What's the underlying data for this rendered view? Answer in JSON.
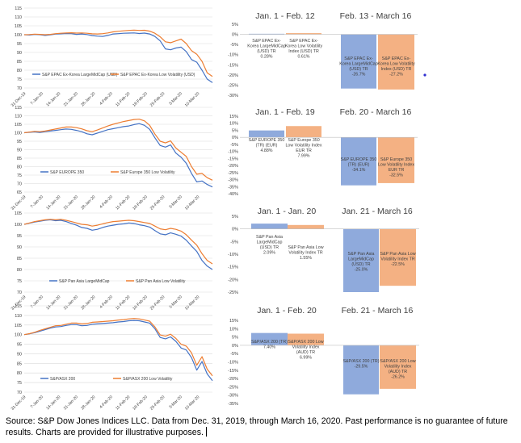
{
  "colors": {
    "msci": "#4472C4",
    "lowvol": "#ED7D31",
    "bar_blue": "#8FAADC",
    "bar_orange": "#F4B183",
    "grid": "#D9D9D9",
    "dot": "#2F2FD0"
  },
  "chart_data": [
    {
      "id": "line-epac",
      "type": "line",
      "ylim": [
        70,
        115
      ],
      "ytick_labels": [
        "115",
        "110",
        "105",
        "100",
        "95",
        "90",
        "85",
        "80",
        "75",
        "70"
      ],
      "x_tick_labels": [
        "31-Dec-19",
        "7-Jan-20",
        "14-Jan-20",
        "21-Jan-20",
        "28-Jan-20",
        "4-Feb-20",
        "11-Feb-20",
        "18-Feb-20",
        "25-Feb-20",
        "3-Mar-20",
        "10-Mar-20"
      ],
      "series": [
        {
          "name": "S&P EPAC Ex-Korea LargeMidCap (USD)",
          "color": "#4472C4",
          "values": [
            100,
            99.8,
            100.2,
            100,
            99.6,
            99.9,
            100.4,
            100.5,
            100.7,
            100.6,
            100.2,
            100.4,
            100.1,
            99.5,
            99.2,
            99,
            99.6,
            100.4,
            100.6,
            100.8,
            100.9,
            101,
            100.7,
            100.9,
            100.4,
            99,
            96.5,
            92,
            91.5,
            92.5,
            93,
            90.5,
            86,
            84.5,
            80,
            75,
            73
          ]
        },
        {
          "name": "S&P EPAC Ex-Korea Low Volatility (USD)",
          "color": "#ED7D31",
          "values": [
            100,
            100.1,
            100.3,
            100.2,
            100,
            100.2,
            100.6,
            100.8,
            101,
            101.1,
            100.9,
            101,
            100.8,
            100.5,
            100.4,
            100.6,
            101,
            101.6,
            101.9,
            102.2,
            102.4,
            102.6,
            102.4,
            102.5,
            102,
            100.8,
            98.8,
            96,
            95.5,
            96.5,
            97.5,
            95,
            91,
            89,
            85,
            78.5,
            76.5
          ]
        }
      ]
    },
    {
      "id": "line-europe",
      "type": "line",
      "ylim": [
        65,
        115
      ],
      "ytick_labels": [
        "115",
        "110",
        "105",
        "100",
        "95",
        "90",
        "85",
        "80",
        "75",
        "70",
        "65"
      ],
      "x_tick_labels": [
        "31-Dec-19",
        "7-Jan-20",
        "14-Jan-20",
        "21-Jan-20",
        "28-Jan-20",
        "4-Feb-20",
        "11-Feb-20",
        "18-Feb-20",
        "25-Feb-20",
        "3-Mar-20",
        "10-Mar-20"
      ],
      "series": [
        {
          "name": "S&P EUROPE 350",
          "color": "#4472C4",
          "values": [
            100,
            100.3,
            100.5,
            100.2,
            100.6,
            101,
            101.4,
            101.8,
            102.2,
            102,
            101.4,
            100.6,
            99.4,
            98.8,
            99.8,
            100.8,
            101.8,
            102.4,
            103,
            103.6,
            104,
            104.8,
            105.4,
            104.4,
            102,
            97,
            92.5,
            91.5,
            92.8,
            88,
            85.5,
            82,
            76,
            71,
            71.5,
            69.5,
            68
          ]
        },
        {
          "name": "S&P Europe 350 Low Volatility",
          "color": "#ED7D31",
          "values": [
            100,
            100.4,
            100.8,
            100.6,
            101,
            101.6,
            102.2,
            102.8,
            103.4,
            103.4,
            103,
            102.3,
            101.2,
            100.6,
            101.6,
            102.8,
            104,
            105,
            105.8,
            106.6,
            107.2,
            107.8,
            108,
            107,
            104.4,
            99.2,
            95,
            94,
            95.2,
            91,
            88.5,
            86,
            80,
            75.5,
            76,
            73.5,
            72
          ]
        }
      ]
    },
    {
      "id": "line-panasia",
      "type": "line",
      "ylim": [
        70,
        105
      ],
      "ytick_labels": [
        "105",
        "100",
        "95",
        "90",
        "85",
        "80",
        "75",
        "70"
      ],
      "x_tick_labels": [
        "31-Dec-19",
        "7-Jan-20",
        "14-Jan-20",
        "21-Jan-20",
        "28-Jan-20",
        "4-Feb-20",
        "11-Feb-20",
        "18-Feb-20",
        "25-Feb-20",
        "3-Mar-20",
        "10-Mar-20"
      ],
      "series": [
        {
          "name": "S&P Pan Asia LargeMidCap",
          "color": "#4472C4",
          "values": [
            100,
            100.5,
            101,
            101.4,
            101.8,
            102,
            101.6,
            101.8,
            101.2,
            100.4,
            99.6,
            98.6,
            98.2,
            97.4,
            97.8,
            98.6,
            99.2,
            99.6,
            100,
            100.2,
            100.6,
            100.4,
            99.8,
            99.4,
            98.8,
            97.2,
            95.8,
            95.4,
            96.2,
            95.6,
            94.8,
            93,
            90.4,
            88,
            84,
            81.5,
            80
          ]
        },
        {
          "name": "S&P Pan Asia Low Volatility",
          "color": "#ED7D31",
          "values": [
            100,
            100.6,
            101.2,
            101.6,
            102,
            102.2,
            102,
            102.2,
            101.8,
            101.2,
            100.6,
            100,
            99.8,
            99.2,
            99.6,
            100.2,
            100.8,
            101.2,
            101.4,
            101.6,
            101.8,
            101.6,
            101.2,
            100.8,
            100.4,
            99.2,
            98,
            97.6,
            98.2,
            97.8,
            97,
            95.4,
            93,
            90.8,
            87,
            84,
            82.5
          ]
        }
      ]
    },
    {
      "id": "line-asx",
      "type": "line",
      "ylim": [
        70,
        115
      ],
      "ytick_labels": [
        "115",
        "110",
        "105",
        "100",
        "95",
        "90",
        "85",
        "80",
        "75",
        "70"
      ],
      "x_tick_labels": [
        "31-Dec-19",
        "7-Jan-20",
        "14-Jan-20",
        "21-Jan-20",
        "28-Jan-20",
        "4-Feb-20",
        "11-Feb-20",
        "18-Feb-20",
        "25-Feb-20",
        "3-Mar-20",
        "10-Mar-20"
      ],
      "series": [
        {
          "name": "S&P/ASX 200",
          "color": "#4472C4",
          "values": [
            100,
            100.4,
            101,
            101.8,
            102.6,
            103.4,
            104,
            104.2,
            104.8,
            105.2,
            105.2,
            104.6,
            104.8,
            105.4,
            105.6,
            105.8,
            106,
            106.2,
            106.6,
            106.8,
            107.2,
            107.4,
            107.2,
            106.6,
            106,
            103,
            98.5,
            97.8,
            98.8,
            96.5,
            93,
            92,
            88,
            81.5,
            86,
            79.5,
            76
          ]
        },
        {
          "name": "S&P/ASX 200 Low Volatility",
          "color": "#ED7D31",
          "values": [
            100,
            100.5,
            101.2,
            102.2,
            103,
            103.8,
            104.6,
            104.8,
            105.4,
            106,
            106,
            105.6,
            105.8,
            106.4,
            106.6,
            106.8,
            107,
            107.2,
            107.6,
            107.8,
            108.2,
            108.4,
            108.2,
            107.6,
            107,
            104,
            99.8,
            99.2,
            100.2,
            98,
            95,
            94,
            90.5,
            84,
            88.5,
            82,
            78.5
          ]
        }
      ]
    },
    {
      "id": "bar-epac",
      "type": "bar",
      "ylim": [
        -30,
        5
      ],
      "ytick_labels": [
        "5%",
        "0%",
        "-5%",
        "-10%",
        "-15%",
        "-20%",
        "-25%",
        "-30%"
      ],
      "period_titles": [
        "Jan. 1 - Feb. 12",
        "Feb. 13 - March 16"
      ],
      "categories": [
        "Jan. 1 - Feb. 12",
        "Feb. 13 - March 16"
      ],
      "series": [
        {
          "name": "S&P EPAC Ex-Korea LargeMidCap (USD) TR",
          "values": [
            0.28,
            -26.7
          ]
        },
        {
          "name": "S&P EPAC Ex-Korea Low Volatility Index (USD) TR",
          "values": [
            0.61,
            -27.2
          ]
        }
      ],
      "labels": [
        [
          "S&P EPAC Ex-",
          "Korea LargeMidCap",
          "(USD) TR",
          "0.28%"
        ],
        [
          "S&P EPAC Ex-",
          "Korea Low Volatility",
          "Index (USD) TR",
          "0.61%"
        ],
        [
          "S&P EPAC Ex-",
          "Korea LargeMidCap",
          "(USD) TR",
          "-26.7%"
        ],
        [
          "S&P EPAC Ex-",
          "Korea Low Volatility",
          "Index (USD) TR",
          "-27.2%"
        ]
      ]
    },
    {
      "id": "bar-europe",
      "type": "bar",
      "ylim": [
        -40,
        15
      ],
      "ytick_labels": [
        "15%",
        "10%",
        "5%",
        "0%",
        "-5%",
        "-10%",
        "-15%",
        "-20%",
        "-25%",
        "-30%",
        "-35%",
        "-40%"
      ],
      "period_titles": [
        "Jan. 1 - Feb. 19",
        "Feb. 20 - March 16"
      ],
      "categories": [
        "Jan. 1 - Feb. 19",
        "Feb. 20 - March 16"
      ],
      "series": [
        {
          "name": "S&P EUROPE 350 (TR) (EUR)",
          "values": [
            4.88,
            -34.1
          ]
        },
        {
          "name": "S&P Europe 350 Low Volatility Index EUR TR",
          "values": [
            7.99,
            -32.5
          ]
        }
      ],
      "labels": [
        [
          "S&P EUROPE 350",
          "(TR) (EUR)",
          "4.88%"
        ],
        [
          "S&P Europe 350",
          "Low Volatility Index",
          "EUR TR",
          "7.99%"
        ],
        [
          "S&P EUROPE 350",
          "(TR) (EUR)",
          "-34.1%"
        ],
        [
          "S&P Europe 350",
          "Low Volatility Index",
          "EUR TR",
          "-32.5%"
        ]
      ]
    },
    {
      "id": "bar-panasia",
      "type": "bar",
      "ylim": [
        -25,
        5
      ],
      "ytick_labels": [
        "5%",
        "0%",
        "-5%",
        "-10%",
        "-15%",
        "-20%",
        "-25%"
      ],
      "period_titles": [
        "Jan. 1 - Jan. 20",
        "Jan. 21 - March 16"
      ],
      "categories": [
        "Jan. 1 - Jan. 20",
        "Jan. 21 - March 16"
      ],
      "series": [
        {
          "name": "S&P Pan Asia LargeMidCap (USD) TR",
          "values": [
            2.09,
            -25.0
          ]
        },
        {
          "name": "S&P Pan Asia Low Volatility Index TR",
          "values": [
            1.55,
            -22.5
          ]
        }
      ],
      "labels": [
        [
          "S&P Pan Asia",
          "LargeMidCap",
          "(USD) TR",
          "2.09%"
        ],
        [
          "S&P Pan Asia Low",
          "Volatility Index TR",
          "1.55%"
        ],
        [
          "S&P Pan Asia",
          "LargeMidCap",
          "(USD) TR",
          "-25.0%"
        ],
        [
          "S&P Pan Asia Low",
          "Volatility Index TR",
          "-22.5%"
        ]
      ]
    },
    {
      "id": "bar-asx",
      "type": "bar",
      "ylim": [
        -35,
        15
      ],
      "ytick_labels": [
        "15%",
        "10%",
        "5%",
        "0%",
        "-5%",
        "-10%",
        "-15%",
        "-20%",
        "-25%",
        "-30%",
        "-35%"
      ],
      "period_titles": [
        "Jan. 1 - Feb. 20",
        "Feb. 21 - March 16"
      ],
      "categories": [
        "Jan. 1 - Feb. 20",
        "Feb. 21 - March 16"
      ],
      "series": [
        {
          "name": "S&P/ASX 200 (TR)",
          "values": [
            7.4,
            -29.5
          ]
        },
        {
          "name": "S&P/ASX 200 Low Volatility Index (AUD) TR",
          "values": [
            6.99,
            -26.2
          ]
        }
      ],
      "labels": [
        [
          "S&P/ASX 200 (TR)",
          "7.40%"
        ],
        [
          "S&P/ASX 200 Low",
          "Volatility Index",
          "(AUD) TR",
          "6.99%"
        ],
        [
          "S&P/ASX 200 (TR)",
          "-29.5%"
        ],
        [
          "S&P/ASX 200 Low",
          "Volatility Index",
          "(AUD) TR",
          "-26.2%"
        ]
      ]
    }
  ],
  "footer": {
    "source": "Source: S&P Dow Jones Indices LLC. Data from Dec. 31, 2019, through March 16, 2020. Past performance is no guarantee of future results. Charts are provided for illustrative purposes."
  }
}
